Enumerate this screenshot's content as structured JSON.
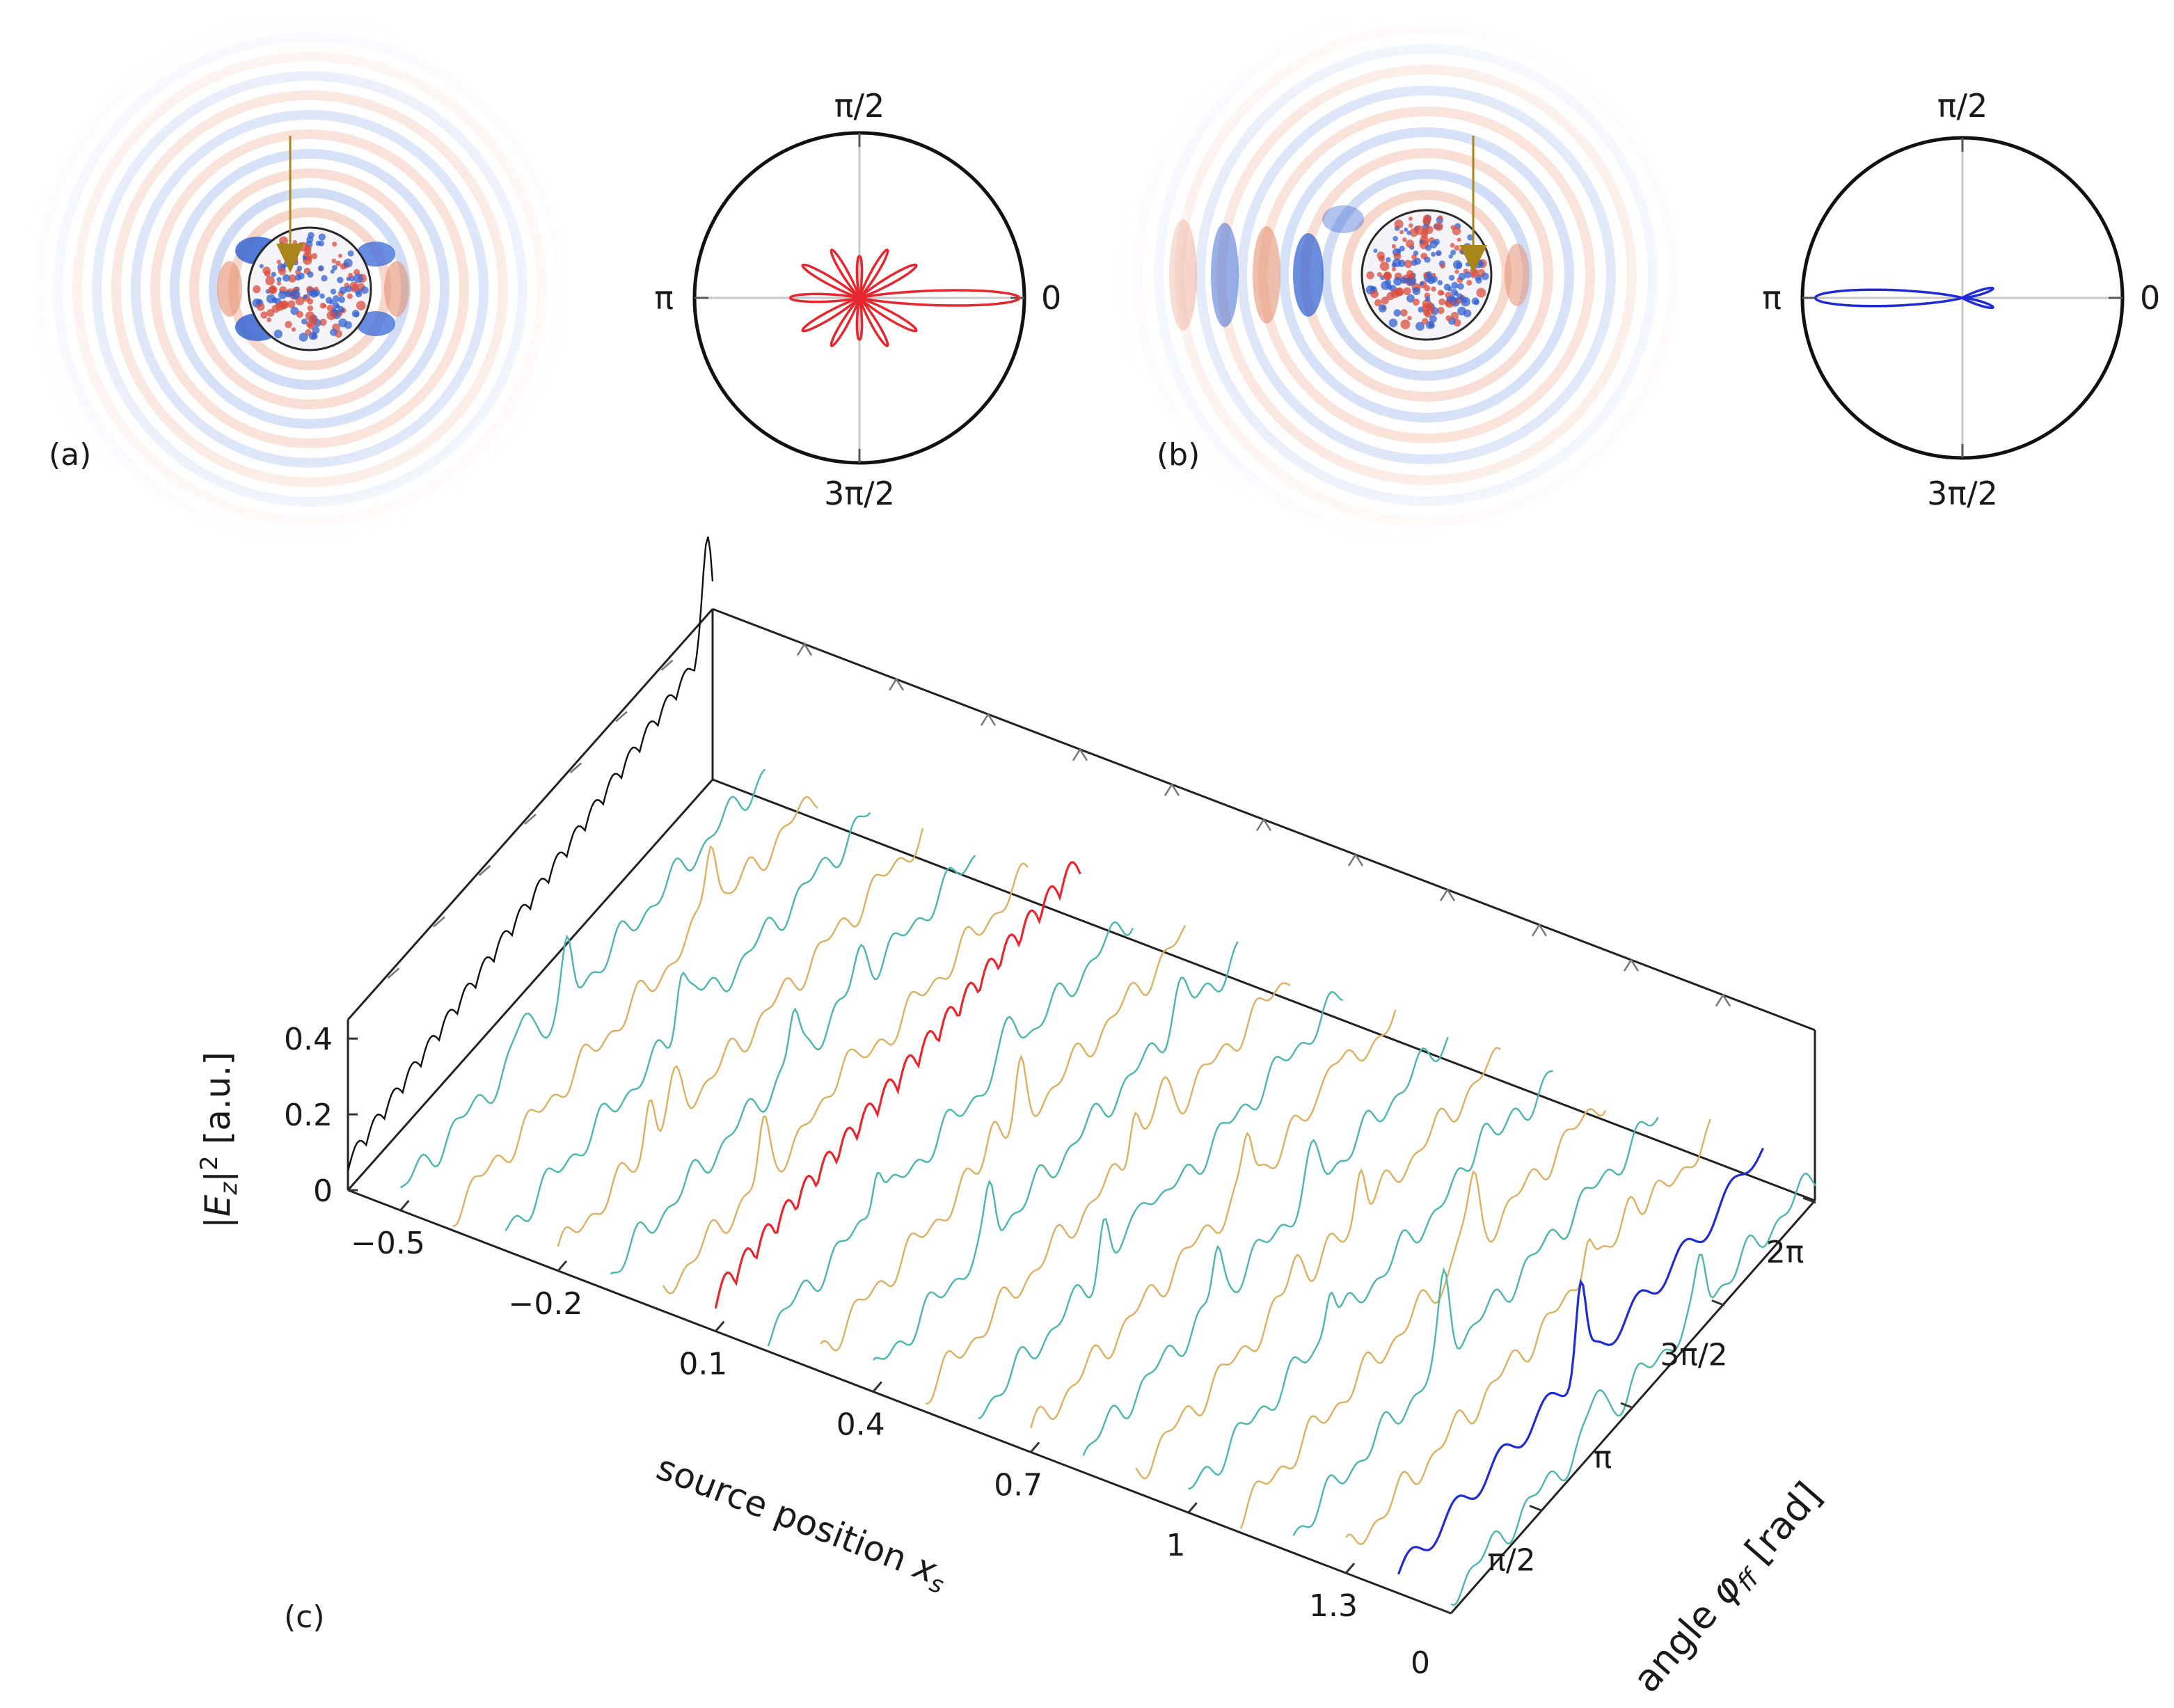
{
  "panels": {
    "a": {
      "label": "(a)",
      "polar": {
        "tick_labels": {
          "top": "π/2",
          "left": "π",
          "right": "0",
          "bottom": "3π/2"
        },
        "color": "#e8262d"
      }
    },
    "b": {
      "label": "(b)",
      "polar": {
        "tick_labels": {
          "top": "π/2",
          "left": "π",
          "right": "0",
          "bottom": "3π/2"
        },
        "color": "#1f2bd6"
      }
    },
    "c": {
      "label": "(c)"
    }
  },
  "colors": {
    "teal": "#4bb6ad",
    "gold": "#dcb060",
    "red": "#e8262d",
    "blue": "#1f2bd6",
    "black": "#111111",
    "arrow": "#a8861c"
  },
  "chart_data": [
    {
      "type": "line",
      "panel": "c",
      "xlabel": "source position x_s",
      "xlabel_text": "source position ",
      "xlabel_symbol": "x",
      "xlabel_sub": "s",
      "ylabel": "angle φ_ff [rad]",
      "ylabel_text": "angle ",
      "ylabel_symbol": "φ",
      "ylabel_sub": "ff",
      "ylabel_unit": " [rad]",
      "zlabel": "|E_z|^2 [a.u.]",
      "zlabel_parts": {
        "bar": "|",
        "symbol": "E",
        "sub": "z",
        "bar2": "|",
        "sup": "2",
        "unit": " [a.u.]"
      },
      "x_ticks": [
        -0.5,
        -0.2,
        0.1,
        0.4,
        0.7,
        1,
        1.3
      ],
      "x_tick_labels": [
        "−0.5",
        "−0.2",
        "0.1",
        "0.4",
        "0.7",
        "1",
        "1.3"
      ],
      "y_tick_labels": [
        "0",
        "π/2",
        "π",
        "3π/2",
        "2π"
      ],
      "y_ticks": [
        0,
        1.5708,
        3.1416,
        4.7124,
        6.2832
      ],
      "z_tick_labels": [
        "0",
        "0.2",
        "0.4"
      ],
      "z_ticks": [
        0,
        0.2,
        0.4
      ],
      "xlim": [
        -0.6,
        1.5
      ],
      "ylim": [
        0,
        6.2832
      ],
      "zlim": [
        0,
        0.45
      ],
      "series_x": [
        -0.6,
        -0.5,
        -0.4,
        -0.3,
        -0.2,
        -0.1,
        0.0,
        0.1,
        0.2,
        0.3,
        0.4,
        0.5,
        0.6,
        0.7,
        0.8,
        0.9,
        1.0,
        1.1,
        1.2,
        1.3,
        1.4,
        1.5
      ],
      "series_colors": [
        "black",
        "teal",
        "gold",
        "teal",
        "gold",
        "teal",
        "gold",
        "red",
        "teal",
        "gold",
        "teal",
        "gold",
        "teal",
        "gold",
        "teal",
        "gold",
        "teal",
        "gold",
        "teal",
        "gold",
        "blue",
        "teal"
      ],
      "grid": false
    }
  ]
}
